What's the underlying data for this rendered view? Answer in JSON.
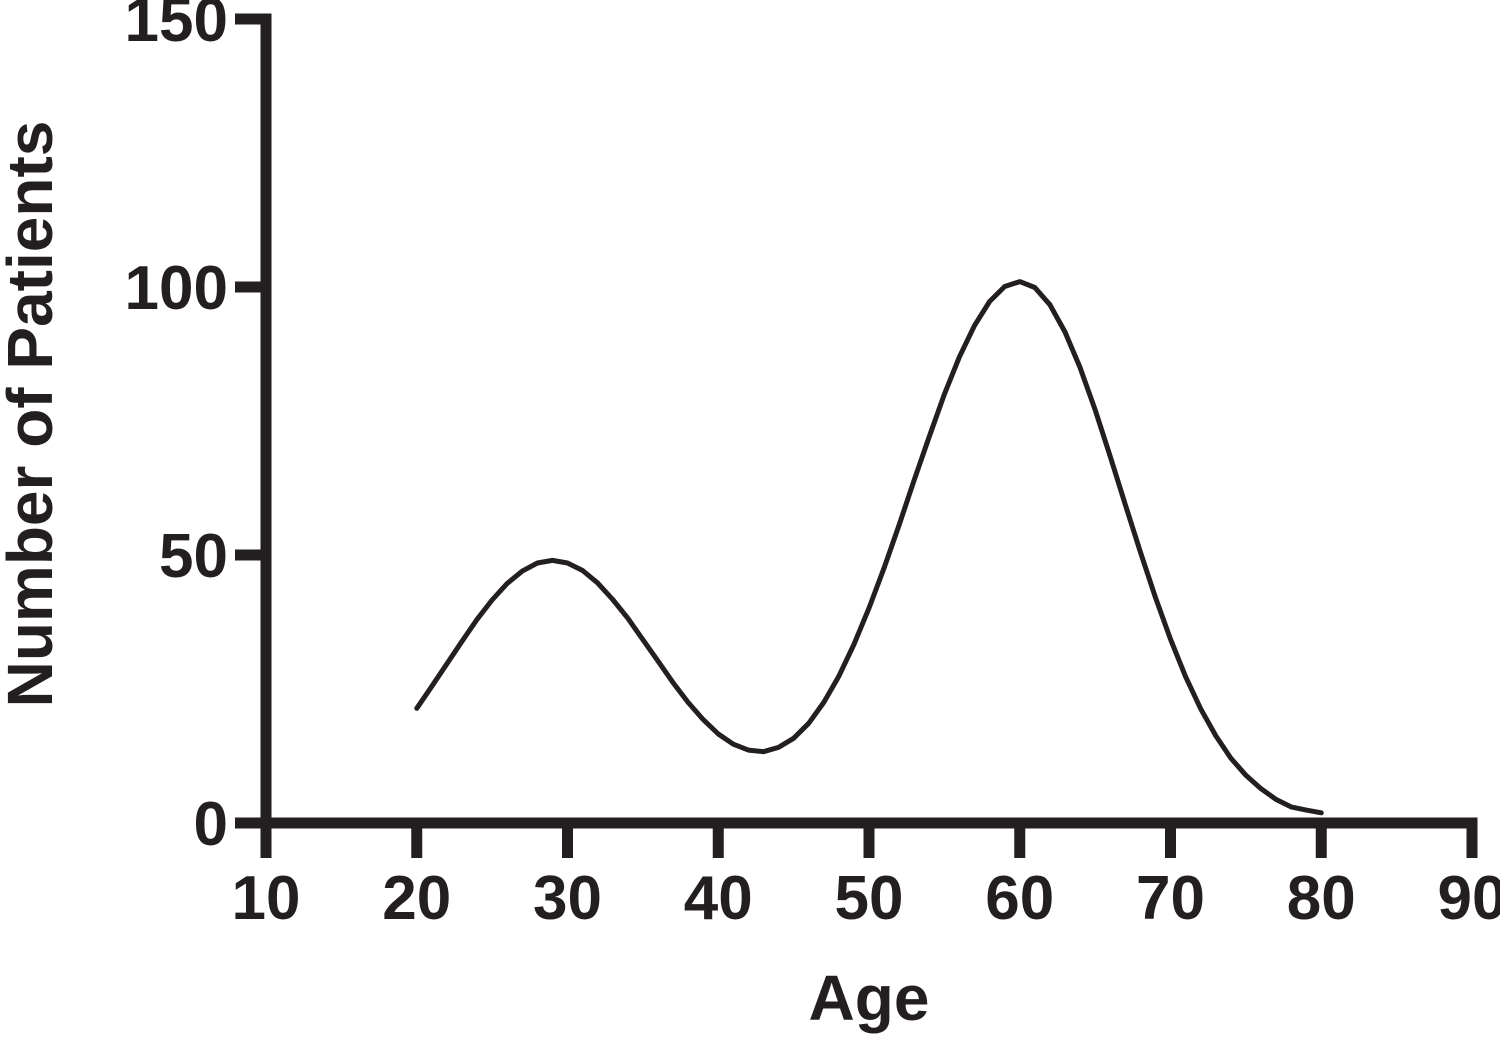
{
  "figure": {
    "background": "#ffffff",
    "ink": "#231f20"
  },
  "chart_data": {
    "type": "line",
    "title": "",
    "xlabel": "Age",
    "ylabel": "Number of Patients",
    "xlim": [
      10,
      90
    ],
    "ylim": [
      0,
      150
    ],
    "x_ticks": [
      10,
      20,
      30,
      40,
      50,
      60,
      70,
      80,
      90
    ],
    "y_ticks": [
      0,
      50,
      100,
      150
    ],
    "grid": false,
    "legend": false,
    "line_color": "#231f20",
    "description": "Smooth bimodal frequency curve: first mode about 49 patients at age 29, local minimum about 13 at age 43, second mode about 101 patients at age 60, tail falling to about 2 by age 80.",
    "series": [
      {
        "name": "Number of Patients",
        "x": [
          20,
          21,
          22,
          23,
          24,
          25,
          26,
          27,
          28,
          29,
          30,
          31,
          32,
          33,
          34,
          35,
          36,
          37,
          38,
          39,
          40,
          41,
          42,
          43,
          44,
          45,
          46,
          47,
          48,
          49,
          50,
          51,
          52,
          53,
          54,
          55,
          56,
          57,
          58,
          59,
          60,
          61,
          62,
          63,
          64,
          65,
          66,
          67,
          68,
          69,
          70,
          71,
          72,
          73,
          74,
          75,
          76,
          77,
          78,
          79,
          80
        ],
        "y": [
          21.4,
          25.5,
          29.7,
          33.9,
          38.0,
          41.6,
          44.7,
          47.0,
          48.5,
          49.0,
          48.5,
          47.1,
          44.8,
          41.7,
          38.2,
          34.2,
          30.2,
          26.2,
          22.5,
          19.3,
          16.6,
          14.7,
          13.6,
          13.3,
          14.1,
          15.8,
          18.6,
          22.5,
          27.4,
          33.3,
          40.1,
          47.6,
          55.6,
          64.0,
          72.1,
          80.0,
          87.0,
          92.8,
          97.3,
          100.1,
          101.0,
          99.9,
          96.7,
          91.6,
          85.0,
          77.1,
          68.4,
          59.4,
          50.6,
          42.1,
          34.3,
          27.3,
          21.3,
          16.3,
          12.1,
          8.9,
          6.4,
          4.4,
          3.0,
          2.4,
          1.9
        ]
      }
    ]
  }
}
